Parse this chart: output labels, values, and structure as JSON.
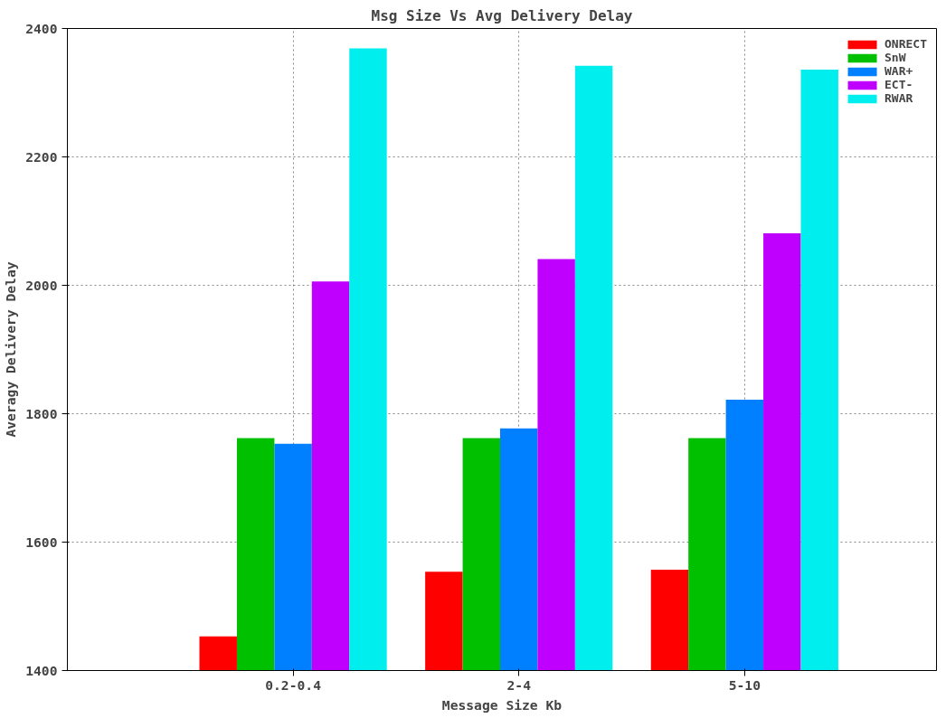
{
  "chart_data": {
    "type": "bar",
    "title": "Msg Size Vs Avg Delivery Delay",
    "xlabel": "Message Size Kb",
    "ylabel": "Averagy Delivery Delay",
    "categories": [
      "0.2-0.4",
      "2-4",
      "5-10"
    ],
    "series": [
      {
        "name": "ONRECT",
        "color": "#ff0000",
        "values": [
          1453,
          1554,
          1557
        ]
      },
      {
        "name": "SnW",
        "color": "#00c000",
        "values": [
          1762,
          1762,
          1762
        ]
      },
      {
        "name": "WAR+",
        "color": "#0080ff",
        "values": [
          1753,
          1777,
          1822
        ]
      },
      {
        "name": "ECT-",
        "color": "#c000ff",
        "values": [
          2006,
          2041,
          2081
        ]
      },
      {
        "name": "RWAR",
        "color": "#00eeee",
        "values": [
          2369,
          2342,
          2336
        ]
      }
    ],
    "ylim": [
      1400,
      2400
    ],
    "yticks": [
      1400,
      1600,
      1800,
      2000,
      2200,
      2400
    ],
    "grid": true,
    "legend": "top right"
  }
}
